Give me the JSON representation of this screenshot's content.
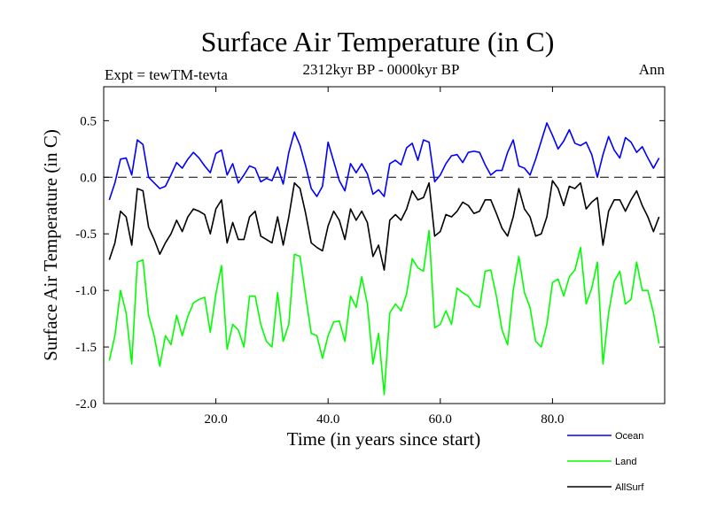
{
  "chart_data": {
    "type": "line",
    "title": "Surface Air Temperature (in C)",
    "subtitle": "2312kyr BP - 0000kyr BP",
    "experiment_label": "Expt = tewTM-tevta",
    "period_label": "Ann",
    "xlabel": "Time (in years since start)",
    "ylabel": "Surface Air Temperature (in C)",
    "xlim": [
      0,
      100
    ],
    "ylim": [
      -2.0,
      0.8
    ],
    "x_ticks": [
      20,
      40,
      60,
      80
    ],
    "x_tick_labels": [
      "20.0",
      "40.0",
      "60.0",
      "80.0"
    ],
    "y_ticks": [
      -2.0,
      -1.5,
      -1.0,
      -0.5,
      0.0,
      0.5
    ],
    "y_tick_labels": [
      "-2.0",
      "-1.5",
      "-1.0",
      "-0.5",
      "0.0",
      "0.5"
    ],
    "zero_line": true,
    "series": [
      {
        "name": "Ocean",
        "color": "#0000ff",
        "values": [
          -0.2,
          -0.05,
          0.16,
          0.17,
          0.02,
          0.33,
          0.29,
          0.0,
          -0.05,
          -0.1,
          -0.08,
          0.02,
          0.13,
          0.08,
          0.16,
          0.22,
          0.17,
          0.1,
          0.04,
          0.21,
          0.24,
          0.02,
          0.12,
          -0.05,
          0.02,
          0.1,
          0.08,
          -0.04,
          -0.01,
          -0.03,
          0.09,
          -0.06,
          0.22,
          0.4,
          0.28,
          0.1,
          -0.1,
          -0.17,
          -0.08,
          0.31,
          0.14,
          -0.03,
          -0.12,
          0.12,
          0.04,
          0.12,
          0.03,
          -0.15,
          -0.11,
          -0.17,
          0.12,
          0.15,
          0.11,
          0.26,
          0.3,
          0.15,
          0.33,
          0.31,
          -0.04,
          0.02,
          0.12,
          0.19,
          0.2,
          0.13,
          0.22,
          0.23,
          0.22,
          0.11,
          0.02,
          0.06,
          0.06,
          0.22,
          0.33,
          0.1,
          0.08,
          0.02,
          0.16,
          0.32,
          0.48,
          0.37,
          0.25,
          0.32,
          0.42,
          0.3,
          0.28,
          0.31,
          0.2,
          0.0,
          0.2,
          0.36,
          0.24,
          0.17,
          0.35,
          0.31,
          0.22,
          0.27,
          0.17,
          0.08,
          0.17
        ]
      },
      {
        "name": "Land",
        "color": "#00ff00",
        "values": [
          -1.62,
          -1.4,
          -1.0,
          -1.2,
          -1.65,
          -0.75,
          -0.73,
          -1.22,
          -1.4,
          -1.67,
          -1.4,
          -1.48,
          -1.22,
          -1.4,
          -1.23,
          -1.11,
          -1.08,
          -1.06,
          -1.37,
          -1.03,
          -0.78,
          -1.52,
          -1.3,
          -1.35,
          -1.5,
          -1.05,
          -1.05,
          -1.3,
          -1.45,
          -1.5,
          -1.02,
          -1.45,
          -1.3,
          -0.68,
          -0.7,
          -1.05,
          -1.38,
          -1.4,
          -1.6,
          -1.4,
          -1.28,
          -1.27,
          -1.45,
          -1.05,
          -1.15,
          -0.88,
          -1.12,
          -1.65,
          -1.38,
          -1.92,
          -1.2,
          -1.12,
          -1.18,
          -1.03,
          -0.72,
          -0.8,
          -0.83,
          -0.47,
          -1.33,
          -1.3,
          -1.18,
          -1.3,
          -0.98,
          -1.02,
          -1.05,
          -1.13,
          -1.15,
          -0.83,
          -0.82,
          -1.05,
          -1.35,
          -1.48,
          -1.0,
          -0.7,
          -1.02,
          -1.15,
          -1.45,
          -1.5,
          -1.3,
          -0.93,
          -0.9,
          -1.05,
          -0.88,
          -0.82,
          -0.62,
          -1.12,
          -0.98,
          -0.75,
          -1.65,
          -1.2,
          -0.92,
          -0.83,
          -1.12,
          -1.08,
          -0.75,
          -1.0,
          -1.0,
          -1.2,
          -1.47
        ]
      },
      {
        "name": "AllSurf",
        "color": "#000000",
        "values": [
          -0.73,
          -0.58,
          -0.3,
          -0.35,
          -0.6,
          -0.1,
          -0.12,
          -0.44,
          -0.55,
          -0.68,
          -0.58,
          -0.5,
          -0.38,
          -0.48,
          -0.35,
          -0.28,
          -0.3,
          -0.33,
          -0.5,
          -0.28,
          -0.2,
          -0.58,
          -0.4,
          -0.55,
          -0.55,
          -0.35,
          -0.3,
          -0.52,
          -0.55,
          -0.58,
          -0.35,
          -0.6,
          -0.35,
          -0.05,
          -0.1,
          -0.32,
          -0.58,
          -0.62,
          -0.65,
          -0.43,
          -0.3,
          -0.38,
          -0.55,
          -0.28,
          -0.38,
          -0.3,
          -0.4,
          -0.7,
          -0.6,
          -0.82,
          -0.38,
          -0.33,
          -0.38,
          -0.28,
          -0.12,
          -0.2,
          -0.18,
          -0.05,
          -0.52,
          -0.48,
          -0.33,
          -0.35,
          -0.3,
          -0.22,
          -0.25,
          -0.32,
          -0.3,
          -0.2,
          -0.2,
          -0.32,
          -0.45,
          -0.52,
          -0.35,
          -0.1,
          -0.28,
          -0.35,
          -0.52,
          -0.5,
          -0.35,
          -0.03,
          -0.1,
          -0.25,
          -0.08,
          -0.1,
          -0.05,
          -0.28,
          -0.22,
          -0.18,
          -0.6,
          -0.3,
          -0.2,
          -0.2,
          -0.3,
          -0.2,
          -0.12,
          -0.25,
          -0.35,
          -0.48,
          -0.35
        ]
      }
    ]
  }
}
